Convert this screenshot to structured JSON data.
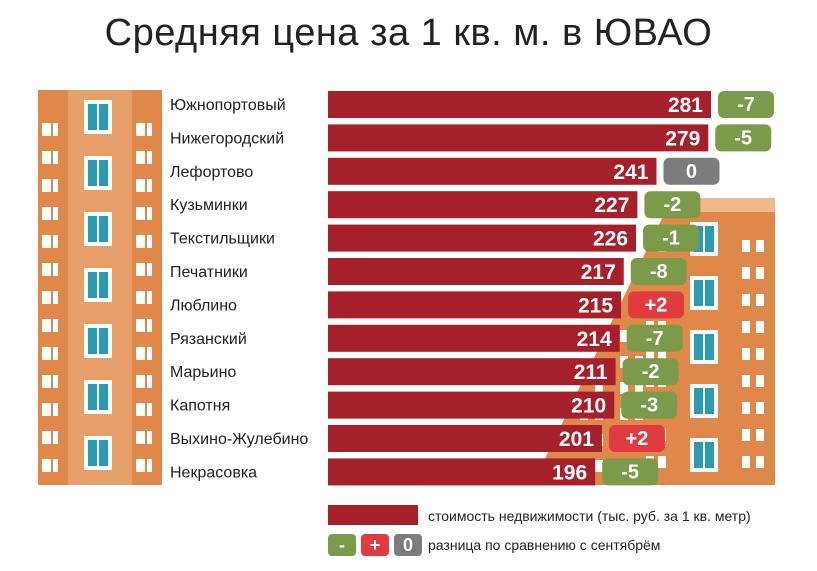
{
  "title": "Средняя цена за 1 кв. м. в ЮВАО",
  "colors": {
    "bar": "#a6202b",
    "negative": "#7b9a4a",
    "positive": "#e03c40",
    "zero": "#7a7c7e",
    "building": "#e0884a"
  },
  "chart_data": {
    "type": "bar",
    "orientation": "horizontal",
    "title": "Средняя цена за 1 кв. м. в ЮВАО",
    "categories": [
      "Южнопортовый",
      "Нижегородский",
      "Лефортово",
      "Кузьминки",
      "Текстильщики",
      "Печатники",
      "Люблино",
      "Рязанский",
      "Марьино",
      "Капотня",
      "Выхино-Жулебино",
      "Некрасовка"
    ],
    "series": [
      {
        "name": "стоимость недвижимости (тыс. руб. за 1 кв. метр)",
        "values": [
          281,
          279,
          241,
          227,
          226,
          217,
          215,
          214,
          211,
          210,
          201,
          196
        ]
      },
      {
        "name": "разница по сравнению с сентябрём",
        "values": [
          "-7",
          "-5",
          "0",
          "-2",
          "-1",
          "-8",
          "+2",
          "-7",
          "-2",
          "-3",
          "+2",
          "-5"
        ]
      }
    ]
  },
  "legend": {
    "bar_label": "стоимость недвижимости (тыс. руб. за 1 кв. метр)",
    "diff_label": "разница по сравнению с сентябрём",
    "minus_symbol": "-",
    "plus_symbol": "+",
    "zero_symbol": "0"
  }
}
